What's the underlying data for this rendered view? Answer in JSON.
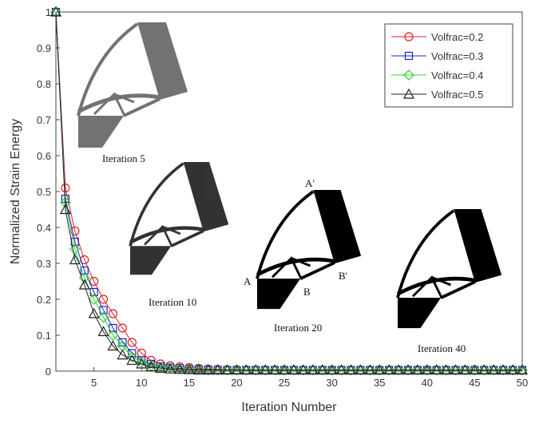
{
  "chart_data": {
    "type": "line",
    "xlabel": "Iteration Number",
    "ylabel": "Normalized Strain Energy",
    "x": [
      1,
      2,
      3,
      4,
      5,
      6,
      7,
      8,
      9,
      10,
      11,
      12,
      13,
      14,
      15,
      16,
      17,
      18,
      19,
      20,
      21,
      22,
      23,
      24,
      25,
      26,
      27,
      28,
      29,
      30,
      31,
      32,
      33,
      34,
      35,
      36,
      37,
      38,
      39,
      40,
      41,
      42,
      43,
      44,
      45,
      46,
      47,
      48,
      49,
      50
    ],
    "xlim": [
      1,
      50
    ],
    "xticks": [
      5,
      10,
      15,
      20,
      25,
      30,
      35,
      40,
      45,
      50
    ],
    "ylim": [
      0,
      1
    ],
    "yticks": [
      0,
      0.1,
      0.2,
      0.3,
      0.4,
      0.5,
      0.6,
      0.7,
      0.8,
      0.9,
      1
    ],
    "legend": "top-right",
    "series": [
      {
        "name": "Volfrac=0.2",
        "color": "#e02020",
        "marker": "circle",
        "values": [
          1,
          0.51,
          0.39,
          0.31,
          0.25,
          0.2,
          0.16,
          0.12,
          0.08,
          0.05,
          0.03,
          0.02,
          0.015,
          0.012,
          0.01,
          0.008,
          0.006,
          0.005,
          0.004,
          0.004,
          0.003,
          0.003,
          0.003,
          0.003,
          0.003,
          0.003,
          0.003,
          0.003,
          0.003,
          0.003,
          0.003,
          0.003,
          0.003,
          0.003,
          0.003,
          0.003,
          0.003,
          0.003,
          0.003,
          0.003,
          0.003,
          0.003,
          0.003,
          0.003,
          0.003,
          0.003,
          0.003,
          0.003,
          0.003,
          0.003
        ]
      },
      {
        "name": "Volfrac=0.3",
        "color": "#2020d0",
        "marker": "square",
        "values": [
          1,
          0.48,
          0.36,
          0.28,
          0.22,
          0.17,
          0.12,
          0.08,
          0.05,
          0.03,
          0.02,
          0.013,
          0.01,
          0.008,
          0.006,
          0.005,
          0.004,
          0.003,
          0.003,
          0.003,
          0.003,
          0.003,
          0.003,
          0.003,
          0.003,
          0.003,
          0.003,
          0.003,
          0.003,
          0.003,
          0.003,
          0.003,
          0.003,
          0.003,
          0.003,
          0.003,
          0.003,
          0.003,
          0.003,
          0.003,
          0.003,
          0.003,
          0.003,
          0.003,
          0.003,
          0.003,
          0.003,
          0.003,
          0.003,
          0.003
        ]
      },
      {
        "name": "Volfrac=0.4",
        "color": "#30d030",
        "marker": "diamond",
        "values": [
          1,
          0.47,
          0.34,
          0.26,
          0.2,
          0.15,
          0.1,
          0.07,
          0.04,
          0.025,
          0.015,
          0.01,
          0.008,
          0.006,
          0.005,
          0.004,
          0.003,
          0.003,
          0.003,
          0.003,
          0.003,
          0.003,
          0.003,
          0.003,
          0.003,
          0.003,
          0.003,
          0.003,
          0.003,
          0.003,
          0.003,
          0.003,
          0.003,
          0.003,
          0.003,
          0.003,
          0.003,
          0.003,
          0.003,
          0.003,
          0.003,
          0.003,
          0.003,
          0.003,
          0.003,
          0.003,
          0.003,
          0.003,
          0.003,
          0.003
        ]
      },
      {
        "name": "Volfrac=0.5",
        "color": "#202020",
        "marker": "triangle",
        "values": [
          1,
          0.45,
          0.31,
          0.24,
          0.16,
          0.11,
          0.07,
          0.045,
          0.03,
          0.02,
          0.012,
          0.008,
          0.006,
          0.005,
          0.004,
          0.003,
          0.003,
          0.003,
          0.003,
          0.003,
          0.003,
          0.003,
          0.003,
          0.003,
          0.003,
          0.003,
          0.003,
          0.003,
          0.003,
          0.003,
          0.003,
          0.003,
          0.003,
          0.003,
          0.003,
          0.003,
          0.003,
          0.003,
          0.003,
          0.003,
          0.003,
          0.003,
          0.003,
          0.003,
          0.003,
          0.003,
          0.003,
          0.003,
          0.003,
          0.003
        ]
      }
    ],
    "annotations": [
      "Iteration 5",
      "Iteration 10",
      "Iteration 20",
      "Iteration 40",
      "A'",
      "A",
      "B",
      "B'"
    ]
  }
}
